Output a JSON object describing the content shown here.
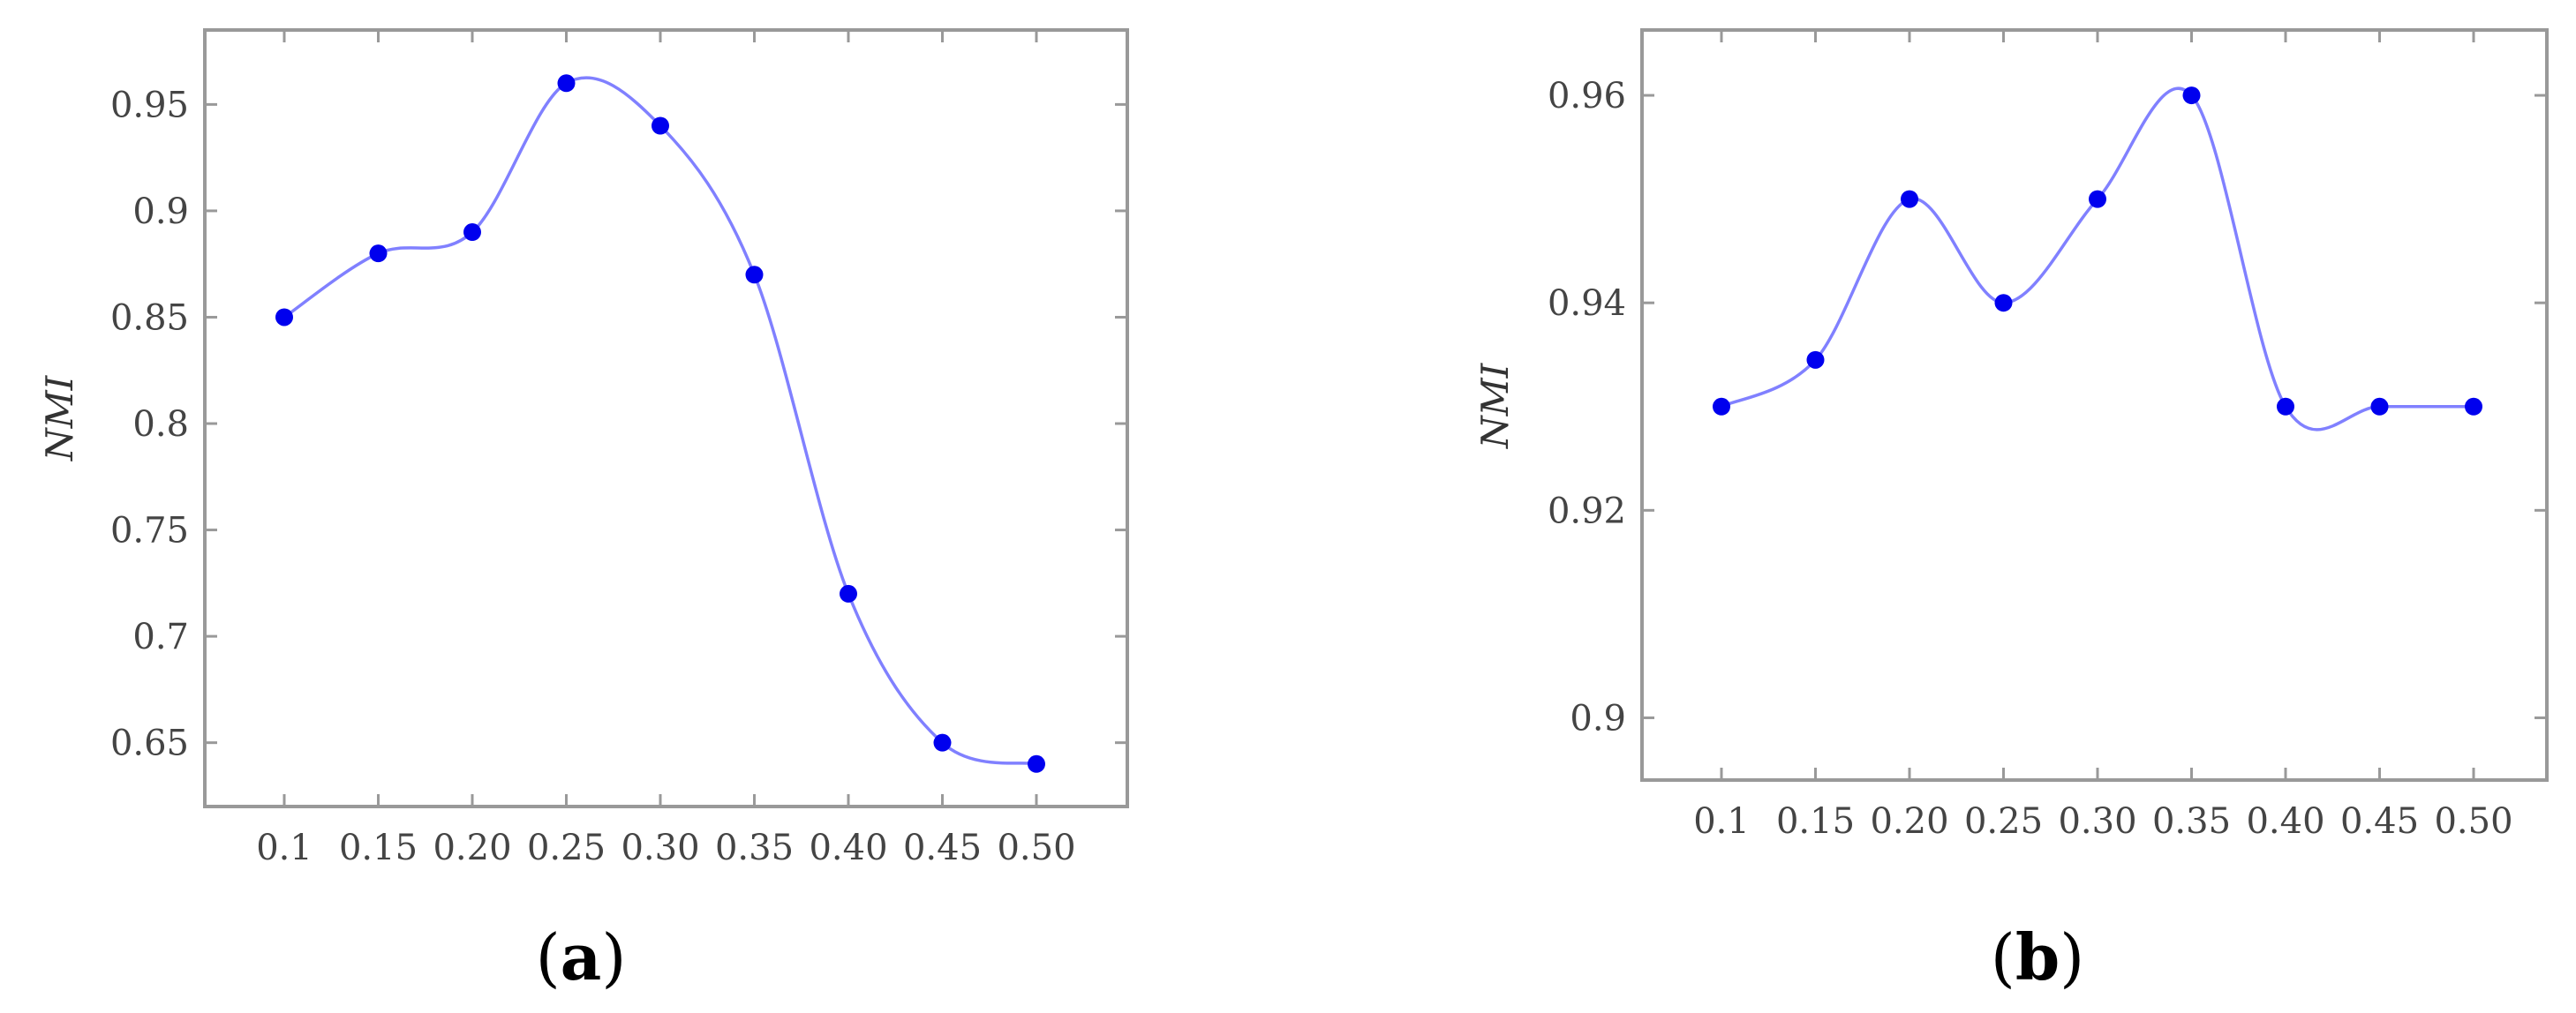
{
  "chart_data": [
    {
      "type": "line",
      "panel_label": "a",
      "ylabel": "NMI",
      "xlabel": "",
      "categories": [
        "0.1",
        "0.15",
        "0.20",
        "0.25",
        "0.30",
        "0.35",
        "0.40",
        "0.45",
        "0.50"
      ],
      "yticks": [
        "0.65",
        "0.7",
        "0.75",
        "0.8",
        "0.85",
        "0.9",
        "0.95"
      ],
      "ylim": [
        0.62,
        0.985
      ],
      "series": [
        {
          "values": [
            0.85,
            0.88,
            0.89,
            0.96,
            0.94,
            0.87,
            0.72,
            0.65,
            0.64
          ]
        }
      ],
      "grid": false,
      "colors": {
        "line": "#8080ff",
        "marker": "#0000ee",
        "axis": "#999999"
      }
    },
    {
      "type": "line",
      "panel_label": "b",
      "ylabel": "NMI",
      "xlabel": "",
      "categories": [
        "0.1",
        "0.15",
        "0.20",
        "0.25",
        "0.30",
        "0.35",
        "0.40",
        "0.45",
        "0.50"
      ],
      "yticks": [
        "0.9",
        "0.92",
        "0.94",
        "0.96"
      ],
      "ylim": [
        0.894,
        0.9663
      ],
      "series": [
        {
          "values": [
            0.93,
            0.9345,
            0.95,
            0.94,
            0.95,
            0.96,
            0.93,
            0.93,
            0.93
          ]
        }
      ],
      "grid": false,
      "colors": {
        "line": "#8080ff",
        "marker": "#0000ee",
        "axis": "#999999"
      }
    }
  ]
}
